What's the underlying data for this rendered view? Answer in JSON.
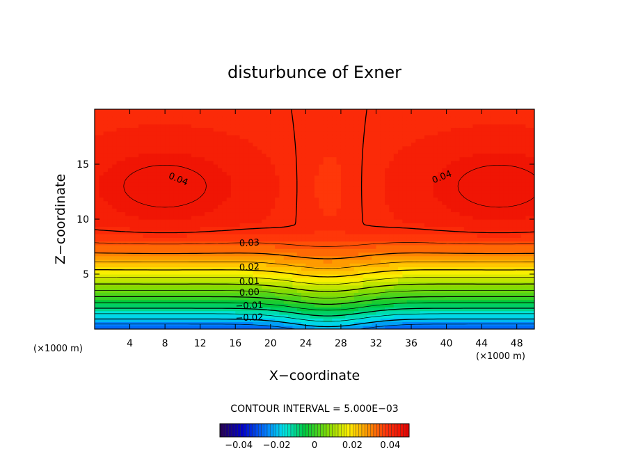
{
  "chart_data": {
    "type": "heatmap",
    "title": "disturbunce of Exner",
    "xlabel": "X−coordinate",
    "ylabel": "Z−coordinate",
    "x_unit": "(×1000 m)",
    "x_unit_right": "(×1000 m)",
    "xlim": [
      0,
      50
    ],
    "ylim": [
      0,
      20
    ],
    "x_ticks": [
      {
        "value": 4,
        "label": "4"
      },
      {
        "value": 8,
        "label": "8"
      },
      {
        "value": 12,
        "label": "12"
      },
      {
        "value": 16,
        "label": "16"
      },
      {
        "value": 20,
        "label": "20"
      },
      {
        "value": 24,
        "label": "24"
      },
      {
        "value": 28,
        "label": "28"
      },
      {
        "value": 32,
        "label": "32"
      },
      {
        "value": 36,
        "label": "36"
      },
      {
        "value": 40,
        "label": "40"
      },
      {
        "value": 44,
        "label": "44"
      },
      {
        "value": 48,
        "label": "48"
      }
    ],
    "y_ticks": [
      {
        "value": 5,
        "label": "5"
      },
      {
        "value": 10,
        "label": "10"
      },
      {
        "value": 15,
        "label": "15"
      }
    ],
    "contour_interval_text": "CONTOUR INTERVAL = 5.000E−03",
    "contour_interval": 0.005,
    "negative_contours": "dashed",
    "contour_labels": [
      {
        "text": "0.04",
        "x": 9.5,
        "y": 13.6,
        "angle": 22
      },
      {
        "text": "0.04",
        "x": 39.5,
        "y": 13.8,
        "angle": -22
      },
      {
        "text": "0.03",
        "x": 17.6,
        "y": 7.8,
        "angle": -3
      },
      {
        "text": "0.02",
        "x": 17.6,
        "y": 5.6,
        "angle": -3
      },
      {
        "text": "0.01",
        "x": 17.6,
        "y": 4.3,
        "angle": -3
      },
      {
        "text": "0.00",
        "x": 17.6,
        "y": 3.3,
        "angle": -3
      },
      {
        "text": "−0.01",
        "x": 17.6,
        "y": 2.1,
        "angle": -2
      },
      {
        "text": "−0.02",
        "x": 17.6,
        "y": 1.0,
        "angle": -2
      }
    ],
    "field_description": {
      "value_range": [
        -0.045,
        0.046
      ],
      "bottom_value": -0.03,
      "gradient_top_height": 10,
      "maxima": [
        {
          "x": 8,
          "z": 13,
          "value": 0.046
        },
        {
          "x": 46,
          "z": 13,
          "value": 0.046
        }
      ],
      "saddle": {
        "x": 26.5,
        "z": 13
      }
    },
    "colorbar": {
      "min": -0.05,
      "max": 0.05,
      "ticks": [
        {
          "value": -0.04,
          "label": "−0.04"
        },
        {
          "value": -0.02,
          "label": "−0.02"
        },
        {
          "value": 0,
          "label": "0"
        },
        {
          "value": 0.02,
          "label": "0.02"
        },
        {
          "value": 0.04,
          "label": "0.04"
        }
      ]
    }
  }
}
